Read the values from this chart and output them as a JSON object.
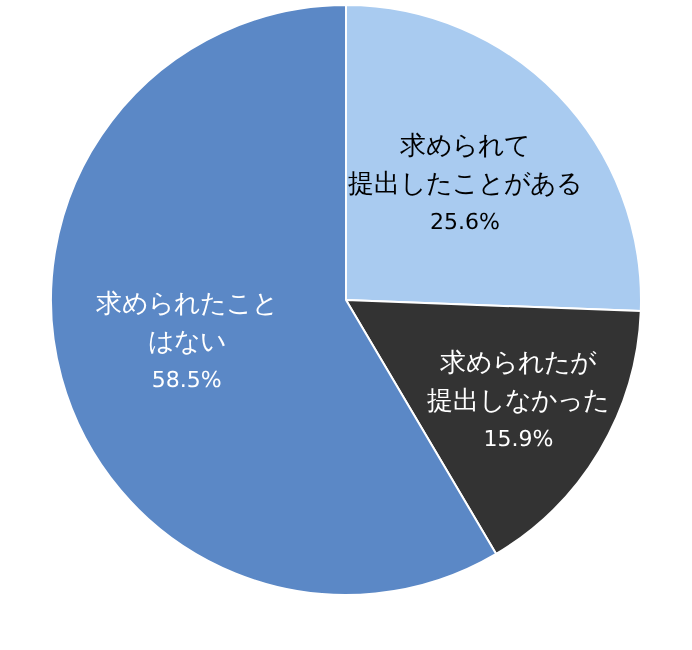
{
  "chart_data": {
    "type": "pie",
    "categories": [
      "求められて提出したことがある",
      "求められたが提出しなかった",
      "求められたことはない"
    ],
    "values": [
      25.6,
      15.9,
      58.5
    ],
    "colors": [
      "#a9cbf0",
      "#333333",
      "#5b88c6"
    ],
    "value_labels": [
      "25.6%",
      "15.9%",
      "58.5%"
    ],
    "legend": false
  }
}
